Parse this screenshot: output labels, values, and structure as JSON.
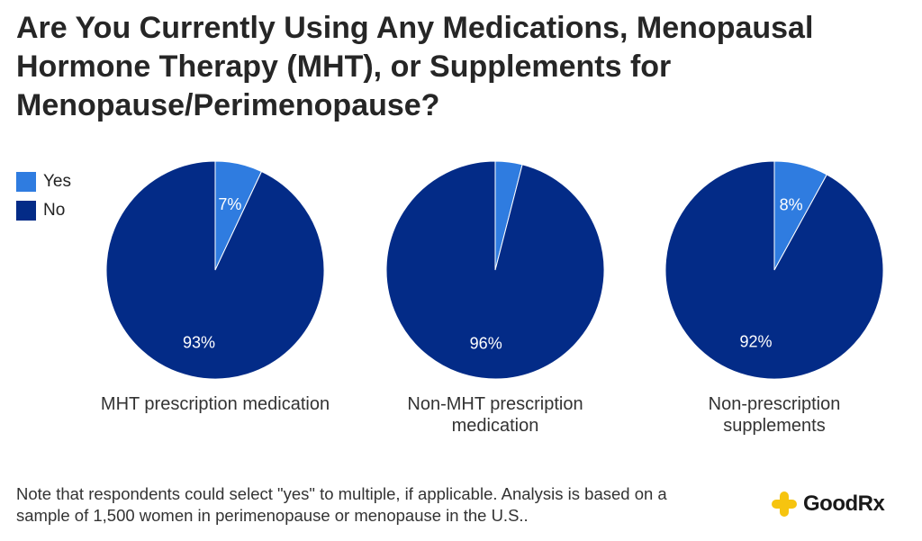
{
  "title": "Are You Currently Using Any Medications, Menopausal Hormone Therapy (MHT), or Supplements for Menopause/Perimenopause?",
  "colors": {
    "yes": "#2f7ce0",
    "no": "#032b87",
    "brand": "#f6c40f"
  },
  "legend": [
    {
      "label": "Yes",
      "color": "#2f7ce0"
    },
    {
      "label": "No",
      "color": "#032b87"
    }
  ],
  "chart_data": {
    "type": "pie",
    "title": "Are You Currently Using Any Medications, Menopausal Hormone Therapy (MHT), or Supplements for Menopause/Perimenopause?",
    "legend_position": "top-left",
    "categories": [
      "Yes",
      "No"
    ],
    "pies": [
      {
        "name": "MHT prescription medication",
        "values": [
          7,
          93
        ],
        "labels": [
          "7%",
          "93%"
        ]
      },
      {
        "name": "Non-MHT prescription medication",
        "values": [
          4,
          96
        ],
        "labels": [
          "",
          "96%"
        ]
      },
      {
        "name": "Non-prescription supplements",
        "values": [
          8,
          92
        ],
        "labels": [
          "8%",
          "92%"
        ]
      }
    ]
  },
  "captions": [
    {
      "line1": "MHT prescription medication",
      "line2": ""
    },
    {
      "line1": "Non-MHT prescription",
      "line2": "medication"
    },
    {
      "line1": "Non-prescription",
      "line2": "supplements"
    }
  ],
  "footer": {
    "note_line1": "Note that respondents could select \"yes\" to multiple, if applicable. Analysis is based on a",
    "note_line2": "sample of 1,500 women in perimenopause or menopause in the U.S..",
    "brand": "GoodRx",
    "brand_icon": "goodrx-plus-icon"
  }
}
